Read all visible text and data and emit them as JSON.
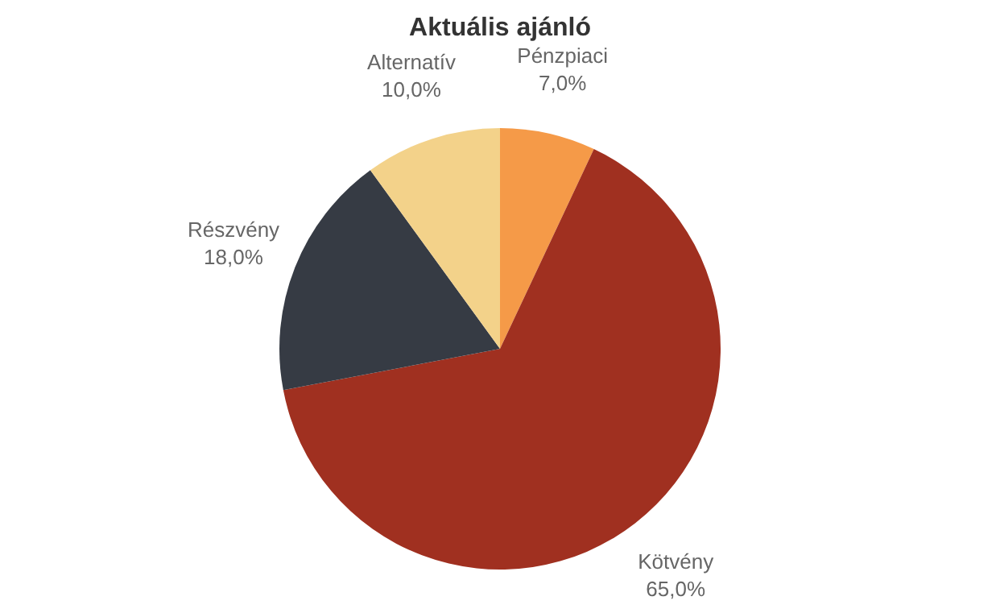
{
  "chart_data": {
    "type": "pie",
    "title": "Aktuális ajánló",
    "categories": [
      "Pénzpiaci",
      "Kötvény",
      "Részvény",
      "Alternatív"
    ],
    "values": [
      7,
      65,
      18,
      10
    ],
    "colors": [
      "#f59a48",
      "#a03020",
      "#363b44",
      "#f3d28a"
    ],
    "value_labels": [
      "7,0%",
      "65,0%",
      "18,0%",
      "10,0%"
    ],
    "legend": false
  }
}
